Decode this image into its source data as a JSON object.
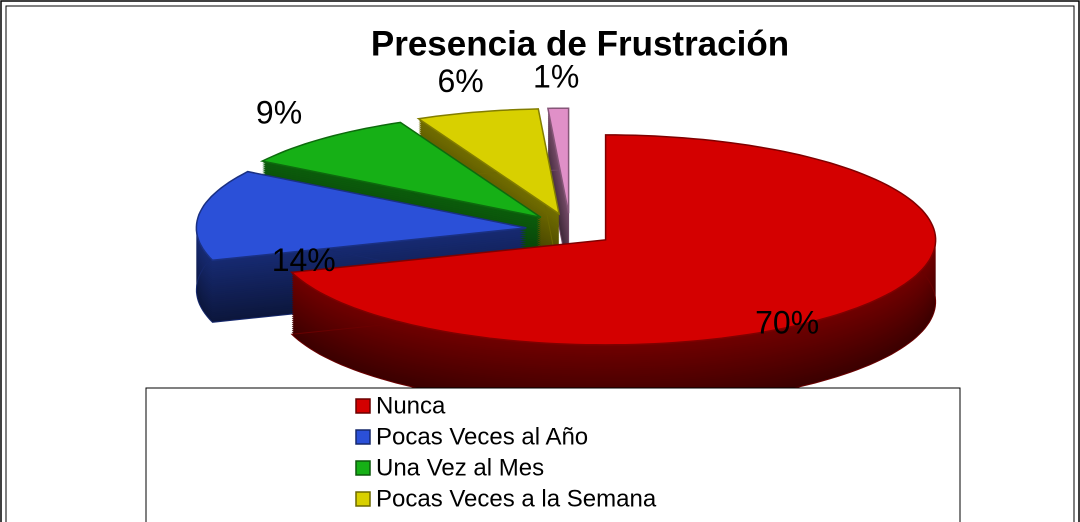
{
  "chart_data": {
    "type": "pie3d",
    "title": "Presencia de Frustración",
    "categories": [
      "Nunca",
      "Pocas Veces al Año",
      "Una Vez al Mes",
      "Pocas Veces a la Semana",
      null
    ],
    "values": [
      70,
      14,
      9,
      6,
      1
    ],
    "value_labels": [
      "70%",
      "14%",
      "9%",
      "6%",
      "1%"
    ],
    "colors": [
      "#d40000",
      "#2b50d8",
      "#16b016",
      "#d8d000",
      "#e090c8"
    ],
    "legend": "bottom"
  }
}
